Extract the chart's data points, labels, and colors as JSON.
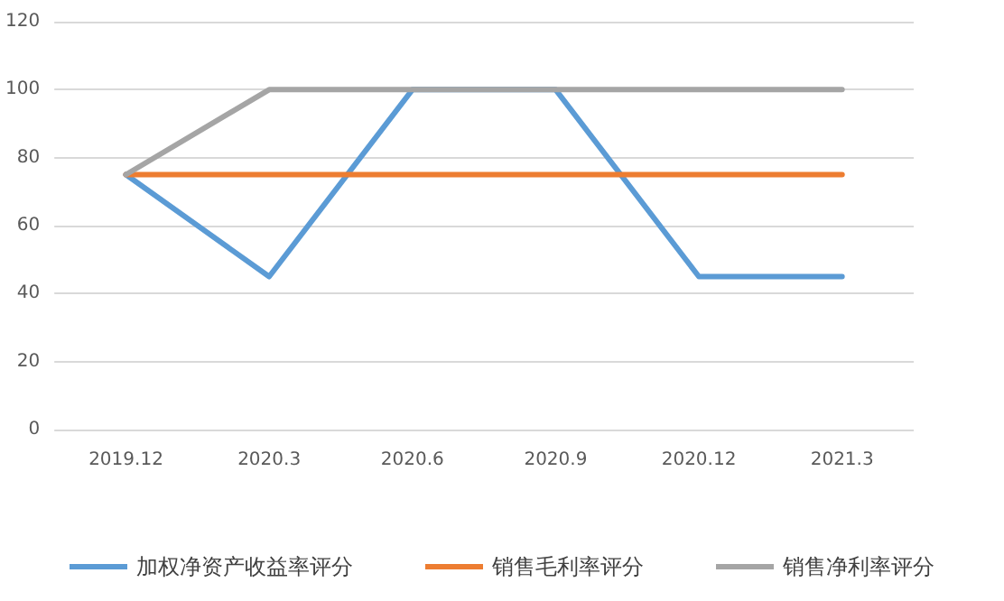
{
  "chart_data": {
    "type": "line",
    "categories": [
      "2019.12",
      "2020.3",
      "2020.6",
      "2020.9",
      "2020.12",
      "2021.3"
    ],
    "series": [
      {
        "name": "加权净资产收益率评分",
        "color": "#5b9bd5",
        "values": [
          75,
          45,
          100,
          100,
          45,
          45
        ]
      },
      {
        "name": "销售毛利率评分",
        "color": "#ed7d31",
        "values": [
          75,
          75,
          75,
          75,
          75,
          75
        ]
      },
      {
        "name": "销售净利率评分",
        "color": "#a5a5a5",
        "values": [
          75,
          100,
          100,
          100,
          100,
          100
        ]
      }
    ],
    "ylim": [
      0,
      120
    ],
    "yticks": [
      0,
      20,
      40,
      60,
      80,
      100,
      120
    ],
    "grid": "y",
    "legend": "bottom",
    "marker": "none",
    "line_style": "solid"
  }
}
